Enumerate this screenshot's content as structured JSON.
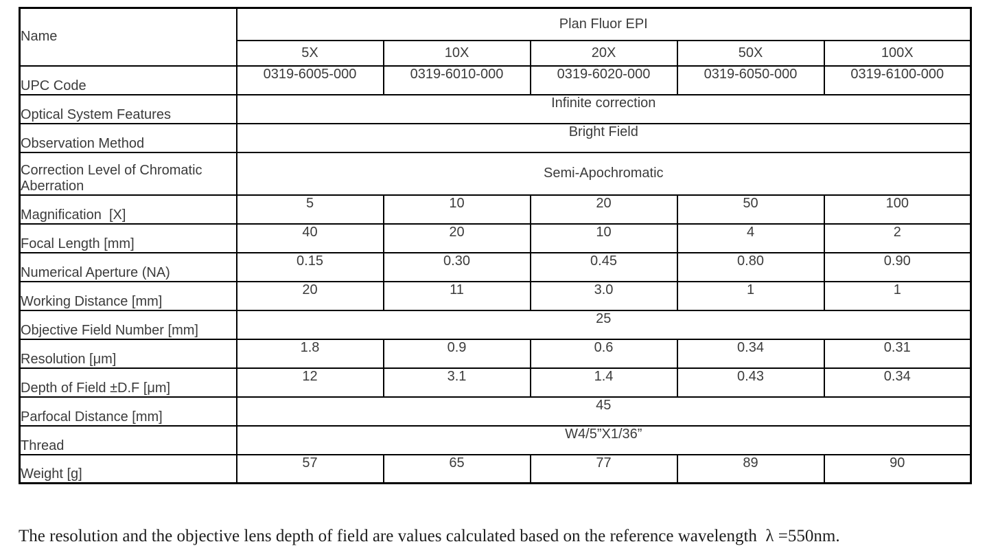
{
  "table": {
    "header": {
      "name_label": "Name",
      "series_title": "Plan Fluor EPI",
      "columns": [
        "5X",
        "10X",
        "20X",
        "50X",
        "100X"
      ]
    },
    "rows": [
      {
        "label": "UPC Code",
        "values": [
          "0319-6005-000",
          "0319-6010-000",
          "0319-6020-000",
          "0319-6050-000",
          "0319-6100-000"
        ]
      },
      {
        "label": "Optical System Features",
        "value": "Infinite correction"
      },
      {
        "label": "Observation Method",
        "value": "Bright Field"
      },
      {
        "label": "Correction Level of Chromatic Aberration",
        "value": "Semi-Apochromatic"
      },
      {
        "label": "Magnification  [X]",
        "values": [
          "5",
          "10",
          "20",
          "50",
          "100"
        ]
      },
      {
        "label": "Focal Length [mm]",
        "values": [
          "40",
          "20",
          "10",
          "4",
          "2"
        ]
      },
      {
        "label": "Numerical Aperture (NA)",
        "values": [
          "0.15",
          "0.30",
          "0.45",
          "0.80",
          "0.90"
        ]
      },
      {
        "label": "Working Distance [mm]",
        "values": [
          "20",
          "11",
          "3.0",
          "1",
          "1"
        ]
      },
      {
        "label": "Objective Field Number [mm]",
        "value": "25"
      },
      {
        "label": "Resolution [μm]",
        "values": [
          "1.8",
          "0.9",
          "0.6",
          "0.34",
          "0.31"
        ]
      },
      {
        "label": "Depth of Field ±D.F [μm]",
        "values": [
          "12",
          "3.1",
          "1.4",
          "0.43",
          "0.34"
        ]
      },
      {
        "label": "Parfocal Distance [mm]",
        "value": "45"
      },
      {
        "label": "Thread",
        "value": "W4/5”X1/36”"
      },
      {
        "label": "Weight [g]",
        "values": [
          "57",
          "65",
          "77",
          "89",
          "90"
        ]
      }
    ]
  },
  "footnote": "The resolution and the objective lens depth of field are values calculated based on the reference wavelength  λ =550nm."
}
